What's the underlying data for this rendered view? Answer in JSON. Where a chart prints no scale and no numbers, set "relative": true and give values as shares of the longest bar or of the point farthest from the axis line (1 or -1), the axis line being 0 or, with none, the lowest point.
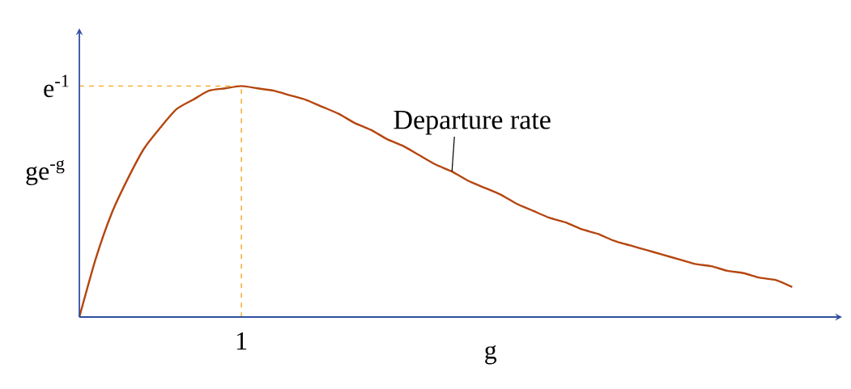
{
  "chart_data": {
    "type": "line",
    "relative": true,
    "color": "#b5460f",
    "marker": "none",
    "line_style": "solid",
    "categories": [
      null,
      null,
      null,
      null,
      null,
      null,
      null,
      null,
      null,
      null,
      null,
      null,
      null,
      null,
      null,
      null,
      null,
      null,
      null,
      null,
      null,
      null,
      null,
      null,
      null,
      null,
      null,
      null,
      null,
      null,
      null,
      null,
      null,
      null,
      null,
      null,
      null,
      null,
      null,
      null,
      null,
      null,
      null,
      null,
      null
    ],
    "values": [
      0,
      0.25,
      0.45,
      0.6,
      0.73,
      0.82,
      0.9,
      0.94,
      0.98,
      0.99,
      1,
      0.99,
      0.98,
      0.96,
      0.94,
      0.91,
      0.88,
      0.84,
      0.81,
      0.77,
      0.74,
      0.7,
      0.66,
      0.63,
      0.59,
      0.56,
      0.53,
      0.49,
      0.46,
      0.43,
      0.41,
      0.38,
      0.36,
      0.33,
      0.31,
      0.29,
      0.27,
      0.25,
      0.23,
      0.22,
      0.2,
      0.19,
      0.17,
      0.16,
      0.13
    ],
    "xlabel": "g",
    "ylabel": "ge$^{-g}$",
    "ref_lines": [
      {
        "axis": "y",
        "value": 1,
        "label": "e$^{-1}$",
        "color": "#f5a623",
        "line_style": "dashed"
      }
    ],
    "annotations": [
      "Departure rate",
      "1"
    ]
  }
}
